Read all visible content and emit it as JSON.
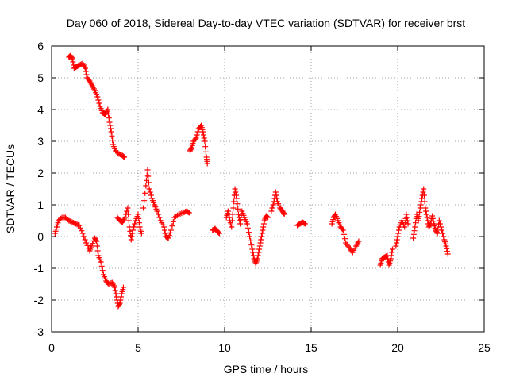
{
  "chart_data": {
    "type": "scatter",
    "title": "Day 060 of 2018, Sidereal Day-to-day VTEC variation (SDTVAR) for receiver brst",
    "xlabel": "GPS time / hours",
    "ylabel": "SDTVAR / TECUs",
    "xlim": [
      0,
      25
    ],
    "ylim": [
      -3,
      6
    ],
    "xticks": [
      "0",
      "5",
      "10",
      "15",
      "20",
      "25"
    ],
    "yticks": [
      "-3",
      "-2",
      "-1",
      "0",
      "1",
      "2",
      "3",
      "4",
      "5",
      "6"
    ],
    "grid": true,
    "marker": "plus",
    "color": "#ff0000",
    "series": [
      {
        "name": "SDTVAR",
        "segments": [
          [
            [
              0.2,
              0.1
            ],
            [
              0.3,
              0.3
            ],
            [
              0.4,
              0.5
            ],
            [
              0.6,
              0.6
            ],
            [
              0.8,
              0.6
            ],
            [
              1.0,
              0.5
            ],
            [
              1.2,
              0.45
            ],
            [
              1.4,
              0.4
            ],
            [
              1.6,
              0.35
            ],
            [
              1.8,
              0.1
            ],
            [
              2.0,
              -0.2
            ],
            [
              2.2,
              -0.45
            ],
            [
              2.3,
              -0.3
            ],
            [
              2.5,
              -0.05
            ],
            [
              2.6,
              -0.15
            ],
            [
              2.7,
              -0.6
            ],
            [
              2.85,
              -0.8
            ],
            [
              3.0,
              -1.2
            ],
            [
              3.15,
              -1.4
            ],
            [
              3.3,
              -1.5
            ],
            [
              3.5,
              -1.45
            ],
            [
              3.65,
              -1.6
            ],
            [
              3.75,
              -1.9
            ],
            [
              3.85,
              -2.2
            ],
            [
              3.95,
              -2.1
            ],
            [
              4.05,
              -1.8
            ],
            [
              4.15,
              -1.6
            ]
          ],
          [
            [
              1.0,
              5.65
            ],
            [
              1.1,
              5.7
            ],
            [
              1.2,
              5.6
            ],
            [
              1.3,
              5.3
            ],
            [
              1.45,
              5.35
            ],
            [
              1.6,
              5.4
            ],
            [
              1.8,
              5.45
            ],
            [
              1.95,
              5.3
            ],
            [
              2.05,
              5.0
            ],
            [
              2.2,
              4.9
            ],
            [
              2.35,
              4.75
            ],
            [
              2.5,
              4.6
            ],
            [
              2.65,
              4.4
            ],
            [
              2.8,
              4.1
            ],
            [
              2.95,
              3.9
            ],
            [
              3.1,
              3.85
            ],
            [
              3.25,
              4.0
            ],
            [
              3.35,
              3.6
            ],
            [
              3.45,
              3.3
            ],
            [
              3.55,
              2.9
            ],
            [
              3.7,
              2.7
            ],
            [
              3.9,
              2.6
            ],
            [
              4.1,
              2.55
            ],
            [
              4.2,
              2.5
            ]
          ],
          [
            [
              3.8,
              0.6
            ],
            [
              3.95,
              0.5
            ],
            [
              4.1,
              0.45
            ],
            [
              4.25,
              0.6
            ],
            [
              4.4,
              0.9
            ],
            [
              4.5,
              0.3
            ],
            [
              4.6,
              -0.1
            ],
            [
              4.7,
              0.2
            ],
            [
              4.85,
              0.5
            ],
            [
              5.0,
              0.7
            ],
            [
              5.1,
              0.3
            ],
            [
              5.2,
              0.1
            ]
          ],
          [
            [
              5.3,
              0.9
            ],
            [
              5.45,
              1.6
            ],
            [
              5.55,
              2.1
            ],
            [
              5.65,
              1.5
            ],
            [
              5.8,
              1.2
            ],
            [
              5.95,
              1.0
            ],
            [
              6.1,
              0.8
            ],
            [
              6.3,
              0.5
            ],
            [
              6.5,
              0.3
            ],
            [
              6.6,
              0.0
            ],
            [
              6.75,
              -0.05
            ],
            [
              6.9,
              0.2
            ],
            [
              7.1,
              0.6
            ],
            [
              7.35,
              0.7
            ],
            [
              7.6,
              0.75
            ],
            [
              7.8,
              0.8
            ],
            [
              7.95,
              0.75
            ]
          ],
          [
            [
              8.0,
              2.7
            ],
            [
              8.1,
              2.8
            ],
            [
              8.2,
              3.0
            ],
            [
              8.35,
              3.1
            ],
            [
              8.5,
              3.4
            ],
            [
              8.65,
              3.5
            ],
            [
              8.75,
              3.3
            ],
            [
              8.85,
              3.0
            ],
            [
              8.95,
              2.5
            ],
            [
              9.0,
              2.3
            ]
          ],
          [
            [
              9.3,
              0.2
            ],
            [
              9.45,
              0.25
            ],
            [
              9.6,
              0.15
            ],
            [
              9.7,
              0.1
            ]
          ],
          [
            [
              10.1,
              0.6
            ],
            [
              10.2,
              0.8
            ],
            [
              10.3,
              0.5
            ],
            [
              10.4,
              0.3
            ],
            [
              10.5,
              0.9
            ],
            [
              10.6,
              1.5
            ],
            [
              10.7,
              1.2
            ],
            [
              10.8,
              0.7
            ],
            [
              10.9,
              0.4
            ],
            [
              11.0,
              0.8
            ],
            [
              11.15,
              0.6
            ],
            [
              11.3,
              0.4
            ],
            [
              11.45,
              0.0
            ],
            [
              11.6,
              -0.4
            ],
            [
              11.7,
              -0.7
            ],
            [
              11.8,
              -0.85
            ],
            [
              11.9,
              -0.7
            ],
            [
              12.0,
              -0.4
            ],
            [
              12.1,
              -0.1
            ],
            [
              12.2,
              0.2
            ],
            [
              12.3,
              0.5
            ],
            [
              12.4,
              0.65
            ],
            [
              12.5,
              0.6
            ]
          ],
          [
            [
              12.7,
              0.8
            ],
            [
              12.85,
              1.1
            ],
            [
              12.95,
              1.4
            ],
            [
              13.05,
              1.1
            ],
            [
              13.2,
              0.9
            ],
            [
              13.35,
              0.8
            ],
            [
              13.45,
              0.7
            ]
          ],
          [
            [
              14.2,
              0.35
            ],
            [
              14.35,
              0.4
            ],
            [
              14.5,
              0.45
            ],
            [
              14.65,
              0.4
            ]
          ],
          [
            [
              16.2,
              0.4
            ],
            [
              16.3,
              0.6
            ],
            [
              16.4,
              0.7
            ],
            [
              16.55,
              0.5
            ],
            [
              16.7,
              0.3
            ],
            [
              16.85,
              0.2
            ],
            [
              17.0,
              -0.2
            ],
            [
              17.2,
              -0.35
            ],
            [
              17.4,
              -0.5
            ],
            [
              17.6,
              -0.3
            ],
            [
              17.75,
              -0.15
            ]
          ],
          [
            [
              19.0,
              -0.9
            ],
            [
              19.1,
              -0.7
            ],
            [
              19.25,
              -0.65
            ],
            [
              19.4,
              -0.6
            ],
            [
              19.5,
              -0.9
            ],
            [
              19.6,
              -0.7
            ],
            [
              19.7,
              -0.4
            ]
          ],
          [
            [
              19.9,
              -0.3
            ],
            [
              20.0,
              0.0
            ],
            [
              20.1,
              0.3
            ],
            [
              20.25,
              0.5
            ],
            [
              20.4,
              0.3
            ],
            [
              20.5,
              0.7
            ],
            [
              20.6,
              0.4
            ]
          ],
          [
            [
              20.9,
              -0.05
            ],
            [
              21.0,
              0.3
            ],
            [
              21.1,
              0.7
            ],
            [
              21.2,
              0.5
            ],
            [
              21.3,
              0.9
            ],
            [
              21.4,
              1.2
            ],
            [
              21.5,
              1.5
            ],
            [
              21.6,
              0.9
            ],
            [
              21.7,
              0.6
            ],
            [
              21.8,
              0.3
            ],
            [
              21.9,
              0.4
            ],
            [
              22.0,
              0.65
            ],
            [
              22.1,
              0.4
            ],
            [
              22.2,
              0.2
            ],
            [
              22.3,
              0.1
            ],
            [
              22.4,
              0.5
            ],
            [
              22.55,
              0.2
            ],
            [
              22.7,
              -0.1
            ],
            [
              22.8,
              -0.3
            ],
            [
              22.9,
              -0.55
            ]
          ]
        ]
      }
    ]
  }
}
